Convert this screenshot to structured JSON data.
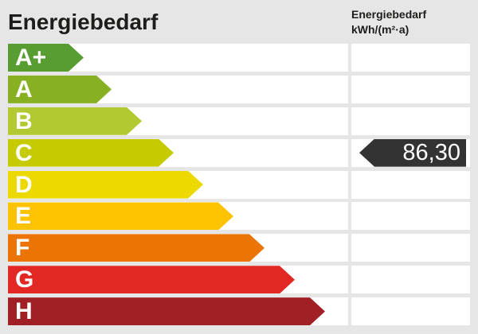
{
  "header": {
    "title": "Energiebedarf",
    "right_title": "Energiebedarf",
    "right_unit": "kWh/(m²·a)"
  },
  "value": {
    "text": "86,30",
    "band": "C"
  },
  "colors": {
    "page_bg": "#e6e6e6",
    "row_bg": "#ffffff",
    "header_text": "#1d1d1b",
    "label_text": "#ffffff",
    "badge_bg": "#333333",
    "badge_text": "#ffffff"
  },
  "scale": {
    "bands": [
      {
        "label": "A+",
        "color": "#579d31",
        "arrow_width": 95
      },
      {
        "label": "A",
        "color": "#87b022",
        "arrow_width": 130
      },
      {
        "label": "B",
        "color": "#b2c932",
        "arrow_width": 168
      },
      {
        "label": "C",
        "color": "#c5cb00",
        "arrow_width": 208
      },
      {
        "label": "D",
        "color": "#ecd900",
        "arrow_width": 245
      },
      {
        "label": "E",
        "color": "#fdc300",
        "arrow_width": 283
      },
      {
        "label": "F",
        "color": "#ec7405",
        "arrow_width": 322
      },
      {
        "label": "G",
        "color": "#e12823",
        "arrow_width": 360
      },
      {
        "label": "H",
        "color": "#a12025",
        "arrow_width": 398
      }
    ]
  },
  "chart_data": {
    "type": "bar",
    "title": "Energiebedarf",
    "ylabel": "Energiebedarf kWh/(m²·a)",
    "categories": [
      "A+",
      "A",
      "B",
      "C",
      "D",
      "E",
      "F",
      "G",
      "H"
    ],
    "values": [
      95,
      130,
      168,
      208,
      245,
      283,
      322,
      360,
      398
    ],
    "bar_colors": [
      "#579d31",
      "#87b022",
      "#b2c932",
      "#c5cb00",
      "#ecd900",
      "#fdc300",
      "#ec7405",
      "#e12823",
      "#a12025"
    ],
    "marked_value": 86.3,
    "marked_value_label": "86,30",
    "marked_value_class": "C",
    "legend_position": "none",
    "grid": false
  }
}
